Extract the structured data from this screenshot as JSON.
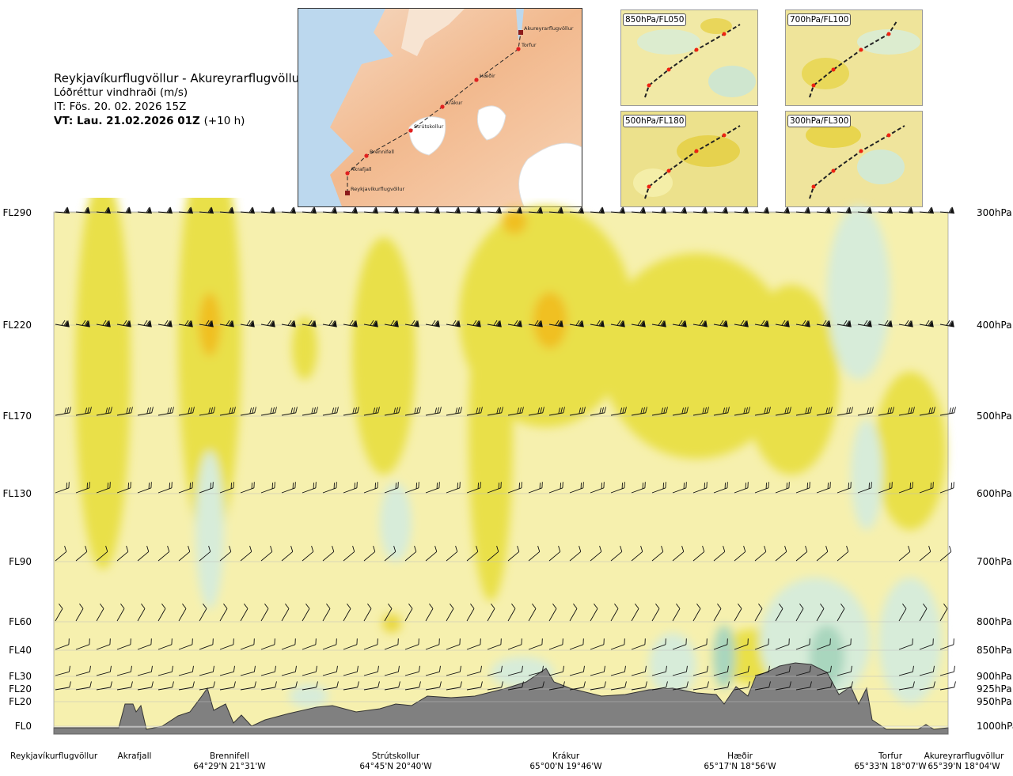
{
  "title": {
    "route": "Reykjavíkurflugvöllur - Akureyrarflugvöllur",
    "parameter": "Lóðréttur vindhraði (m/s)",
    "issue_time": "IT: Fös. 20. 02. 2026 15Z",
    "valid_time": "VT: Lau. 21.02.2026 01Z",
    "lead": "(+10 h)"
  },
  "route_map": {
    "stations": [
      "Akureyrarflugvöllur",
      "Torfur",
      "Hæðir",
      "Krákur",
      "Strútskollur",
      "Brennifell",
      "Akrafjall",
      "Reykjavíkurflugvöllur"
    ]
  },
  "insets": [
    {
      "label": "850hPa/FL050"
    },
    {
      "label": "700hPa/FL100"
    },
    {
      "label": "500hPa/FL180"
    },
    {
      "label": "300hPa/FL300"
    }
  ],
  "chart_data": {
    "type": "heatmap",
    "title": "Lóðréttur vindhraði (m/s)",
    "xlabel": "",
    "ylabel": "",
    "levels": [
      {
        "fl": "FL290",
        "hpa": "300hPa"
      },
      {
        "fl": "FL220",
        "hpa": "400hPa"
      },
      {
        "fl": "FL170",
        "hpa": "500hPa"
      },
      {
        "fl": "FL130",
        "hpa": "600hPa"
      },
      {
        "fl": "FL90",
        "hpa": "700hPa"
      },
      {
        "fl": "FL60",
        "hpa": "800hPa"
      },
      {
        "fl": "FL40",
        "hpa": "850hPa"
      },
      {
        "fl": "FL30",
        "hpa": "900hPa"
      },
      {
        "fl": "FL20",
        "hpa": "925hPa"
      },
      {
        "fl": "FL20",
        "hpa": "950hPa"
      },
      {
        "fl": "FL0",
        "hpa": "1000hPa"
      }
    ],
    "stations": [
      {
        "name": "Reykjavíkurflugvöllur",
        "coord": ""
      },
      {
        "name": "Akrafjall",
        "coord": ""
      },
      {
        "name": "Brennifell",
        "coord": "64°29'N 21°31'W"
      },
      {
        "name": "Strútskollur",
        "coord": "64°45'N 20°40'W"
      },
      {
        "name": "Krákur",
        "coord": "65°00'N 19°46'W"
      },
      {
        "name": "Hæðir",
        "coord": "65°17'N 18°56'W"
      },
      {
        "name": "Torfur",
        "coord": "65°33'N 18°07'W"
      },
      {
        "name": "Akureyrarflugvöllur",
        "coord": "65°39'N 18°04'W"
      }
    ],
    "colors": {
      "strong_updraft": "#e07a10",
      "updraft": "#f0c020",
      "weak_updraft": "#e9e04a",
      "slight_updraft": "#f4eea0",
      "neutral": "#fffbe8",
      "weak_downdraft": "#d7ecd9",
      "downdraft": "#a9d6be",
      "terrain": "#808080"
    }
  }
}
